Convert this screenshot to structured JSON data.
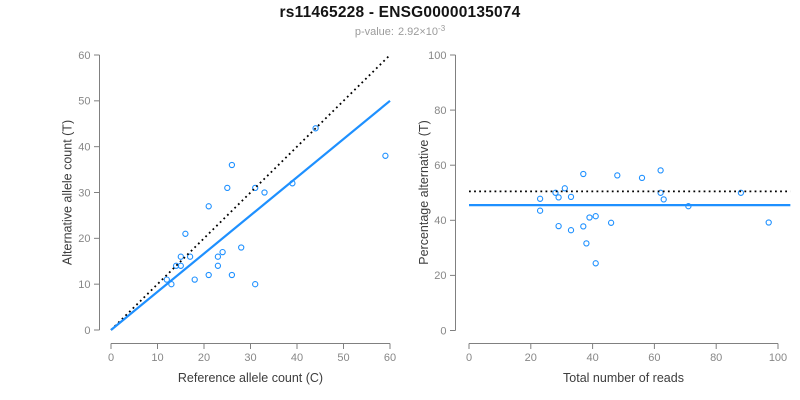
{
  "header": {
    "title": "rs11465228 - ENSG00000135074",
    "subtitle": {
      "label": "p-value:",
      "base": "2.92×10",
      "exponent": "-3"
    }
  },
  "chart_data": [
    {
      "type": "scatter",
      "xlabel": "Reference allele count (C)",
      "ylabel": "Alternative allele count (T)",
      "xlim": [
        0,
        60
      ],
      "ylim": [
        0,
        60
      ],
      "xticks": [
        0,
        10,
        20,
        30,
        40,
        50,
        60
      ],
      "yticks": [
        0,
        10,
        20,
        30,
        40,
        50,
        60
      ],
      "grid": false,
      "legend": "none",
      "point_color": "#1E90FF",
      "points": [
        [
          12,
          11
        ],
        [
          13,
          10
        ],
        [
          14,
          14
        ],
        [
          15,
          14
        ],
        [
          15,
          16
        ],
        [
          16,
          21
        ],
        [
          17,
          16
        ],
        [
          18,
          11
        ],
        [
          21,
          12
        ],
        [
          21,
          27
        ],
        [
          23,
          14
        ],
        [
          23,
          16
        ],
        [
          24,
          17
        ],
        [
          25,
          31
        ],
        [
          26,
          12
        ],
        [
          26,
          36
        ],
        [
          28,
          18
        ],
        [
          31,
          10
        ],
        [
          31,
          31
        ],
        [
          33,
          30
        ],
        [
          39,
          32
        ],
        [
          44,
          44
        ],
        [
          59,
          38
        ]
      ],
      "lines": [
        {
          "name": "identity-line",
          "style": "dotted",
          "color": "#000000",
          "x": [
            0,
            60
          ],
          "y": [
            0,
            60
          ]
        },
        {
          "name": "fit-line",
          "style": "solid",
          "color": "#1E90FF",
          "x": [
            0,
            60
          ],
          "y": [
            0,
            50
          ]
        }
      ]
    },
    {
      "type": "scatter",
      "xlabel": "Total number of reads",
      "ylabel": "Percentage alternative (T)",
      "xlim": [
        0,
        100
      ],
      "ylim": [
        0,
        100
      ],
      "xticks": [
        0,
        20,
        40,
        60,
        80,
        100
      ],
      "yticks": [
        0,
        20,
        40,
        60,
        80,
        100
      ],
      "grid": false,
      "legend": "none",
      "point_color": "#1E90FF",
      "points": [
        [
          23,
          47.8
        ],
        [
          23,
          43.5
        ],
        [
          28,
          50
        ],
        [
          29,
          48.3
        ],
        [
          31,
          51.6
        ],
        [
          37,
          56.8
        ],
        [
          33,
          48.5
        ],
        [
          29,
          37.9
        ],
        [
          33,
          36.4
        ],
        [
          48,
          56.3
        ],
        [
          37,
          37.8
        ],
        [
          39,
          41
        ],
        [
          41,
          41.5
        ],
        [
          56,
          55.4
        ],
        [
          38,
          31.6
        ],
        [
          62,
          58.1
        ],
        [
          46,
          39.1
        ],
        [
          41,
          24.4
        ],
        [
          62,
          50
        ],
        [
          63,
          47.6
        ],
        [
          71,
          45.1
        ],
        [
          88,
          50
        ],
        [
          97,
          39.2
        ]
      ],
      "lines": [
        {
          "name": "expected-line",
          "style": "dotted",
          "color": "#000000",
          "x": [
            0,
            104
          ],
          "y": [
            50.5,
            50.5
          ]
        },
        {
          "name": "fit-line",
          "style": "solid",
          "color": "#1E90FF",
          "x": [
            0,
            104
          ],
          "y": [
            45.5,
            45.5
          ]
        }
      ]
    }
  ]
}
